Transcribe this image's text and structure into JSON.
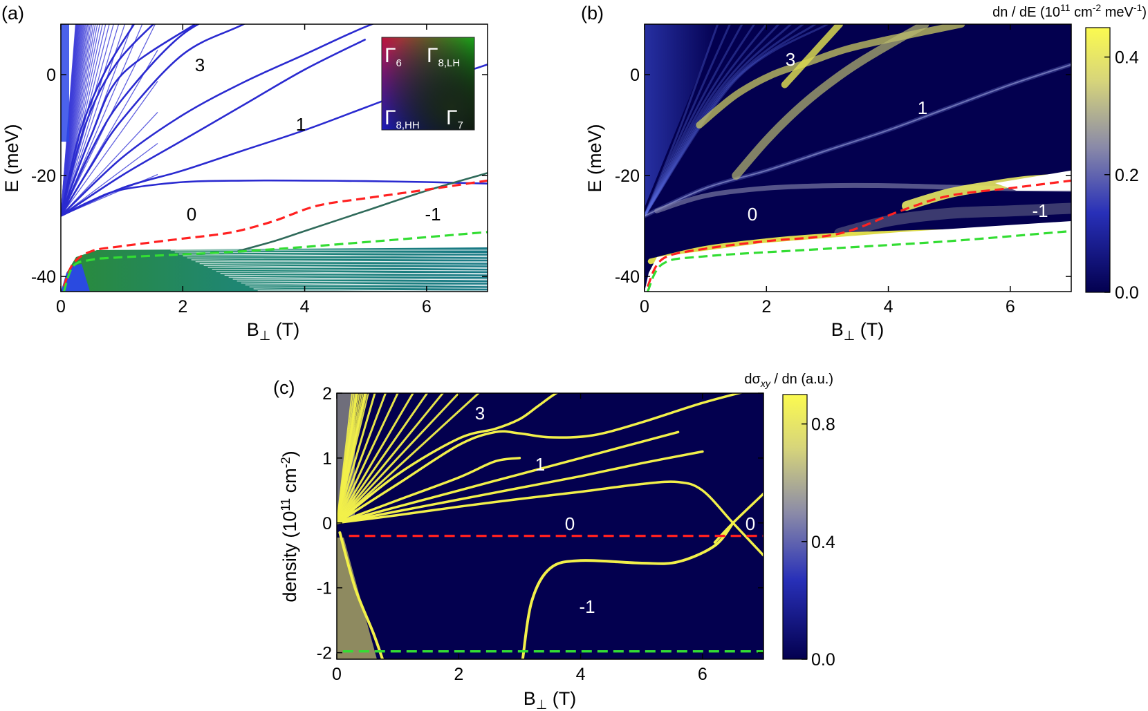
{
  "panels": {
    "a": {
      "label": "(a)",
      "ylabel": "E (meV)",
      "xlabel_main": "B",
      "xlabel_sub": "⊥",
      "xlabel_unit": " (T)"
    },
    "b": {
      "label": "(b)",
      "ylabel": "E (meV)",
      "xlabel_main": "B",
      "xlabel_sub": "⊥",
      "xlabel_unit": " (T)",
      "colorbar_title_pre": "dn / dE (10",
      "colorbar_title_exp1": "11",
      "colorbar_title_mid": " cm",
      "colorbar_title_exp2": "-2",
      "colorbar_title_mid2": " meV",
      "colorbar_title_exp3": "-1",
      "colorbar_title_post": ")"
    },
    "c": {
      "label": "(c)",
      "ylabel_pre": "density (10",
      "ylabel_exp1": "11",
      "ylabel_mid": " cm",
      "ylabel_exp2": "-2",
      "ylabel_post": ")",
      "xlabel_main": "B",
      "xlabel_sub": "⊥",
      "xlabel_unit": " (T)",
      "colorbar_title_pre": "dσ",
      "colorbar_title_sub": "xy",
      "colorbar_title_post": " / dn (a.u.)"
    }
  },
  "legend": {
    "g6": "Γ",
    "g6_sub": "6",
    "g8lh": "Γ",
    "g8lh_sub": "8,LH",
    "g8hh": "Γ",
    "g8hh_sub": "8,HH",
    "g7": "Γ",
    "g7_sub": "7"
  },
  "colors": {
    "red_dash": "#ff2020",
    "green_dash": "#33dd33",
    "navy": "#03004f",
    "yellow": "#f2f04a",
    "blue_level": "#2a2ad0",
    "teal_level": "#1c7f86"
  },
  "chart_data": [
    {
      "type": "line",
      "panel": "a",
      "title": "",
      "xlabel": "B⊥ (T)",
      "ylabel": "E (meV)",
      "xlim": [
        0,
        7
      ],
      "ylim": [
        -43,
        10
      ],
      "xticks": [
        "0",
        "2",
        "4",
        "6"
      ],
      "yticks": [
        "0",
        "-20",
        "-40"
      ],
      "annotations": [
        "3",
        "1",
        "0",
        "-1"
      ],
      "series": [
        {
          "name": "red dashed",
          "x": [
            0.05,
            0.2,
            0.5,
            1,
            2,
            2.5,
            2.9,
            3.5,
            4.2,
            5.0,
            6.0,
            7.0
          ],
          "y": [
            -42,
            -37.5,
            -35,
            -34,
            -32.5,
            -31.8,
            -31,
            -29,
            -26,
            -24.5,
            -22.8,
            -21
          ]
        },
        {
          "name": "green dashed",
          "x": [
            0.05,
            0.2,
            0.5,
            1,
            3,
            5,
            7
          ],
          "y": [
            -43,
            -38,
            -36.7,
            -36.2,
            -35,
            -33.2,
            -31.2
          ]
        },
        {
          "name": "flat level",
          "x": [
            0,
            0.5,
            1,
            2,
            3,
            4,
            5,
            6,
            7
          ],
          "y": [
            -28,
            -25,
            -22.8,
            -21.3,
            -21,
            -21,
            -21.1,
            -21.3,
            -21.6
          ]
        }
      ]
    },
    {
      "type": "heatmap",
      "panel": "b",
      "title": "dn / dE (10^11 cm^-2 meV^-1)",
      "xlabel": "B⊥ (T)",
      "ylabel": "E (meV)",
      "xlim": [
        0,
        7
      ],
      "ylim": [
        -43,
        10
      ],
      "xticks": [
        "0",
        "2",
        "4",
        "6"
      ],
      "yticks": [
        "0",
        "-20",
        "-40"
      ],
      "colorbar": {
        "range": [
          0,
          0.45
        ],
        "ticks": [
          "0.0",
          "0.2",
          "0.4"
        ]
      },
      "annotations": [
        "3",
        "1",
        "0",
        "-1"
      ],
      "series": [
        {
          "name": "red dashed",
          "x": [
            0.05,
            0.3,
            1,
            2,
            3.2,
            4.2,
            5,
            6,
            7
          ],
          "y": [
            -42,
            -36.5,
            -34.5,
            -33,
            -31.5,
            -27,
            -24,
            -22.5,
            -21
          ]
        },
        {
          "name": "green dashed",
          "x": [
            0.05,
            0.3,
            1,
            3,
            5,
            7
          ],
          "y": [
            -43,
            -37.5,
            -36,
            -34.5,
            -33,
            -31
          ]
        }
      ]
    },
    {
      "type": "heatmap",
      "panel": "c",
      "title": "dσxy / dn (a.u.)",
      "xlabel": "B⊥ (T)",
      "ylabel": "density (10^11 cm^-2)",
      "xlim": [
        0,
        7
      ],
      "ylim": [
        -2.1,
        2
      ],
      "xticks": [
        "0",
        "2",
        "4",
        "6"
      ],
      "yticks": [
        "2",
        "1",
        "0",
        "-1",
        "-2"
      ],
      "colorbar": {
        "range": [
          0,
          0.9
        ],
        "ticks": [
          "0.0",
          "0.4",
          "0.8"
        ]
      },
      "annotations": [
        "3",
        "1",
        "0",
        "0",
        "-1"
      ],
      "series": [
        {
          "name": "red dashed",
          "x": [
            0.2,
            7
          ],
          "y": [
            -0.2,
            -0.2
          ]
        },
        {
          "name": "green dashed",
          "x": [
            0.1,
            7
          ],
          "y": [
            -1.98,
            -1.98
          ]
        }
      ]
    }
  ]
}
